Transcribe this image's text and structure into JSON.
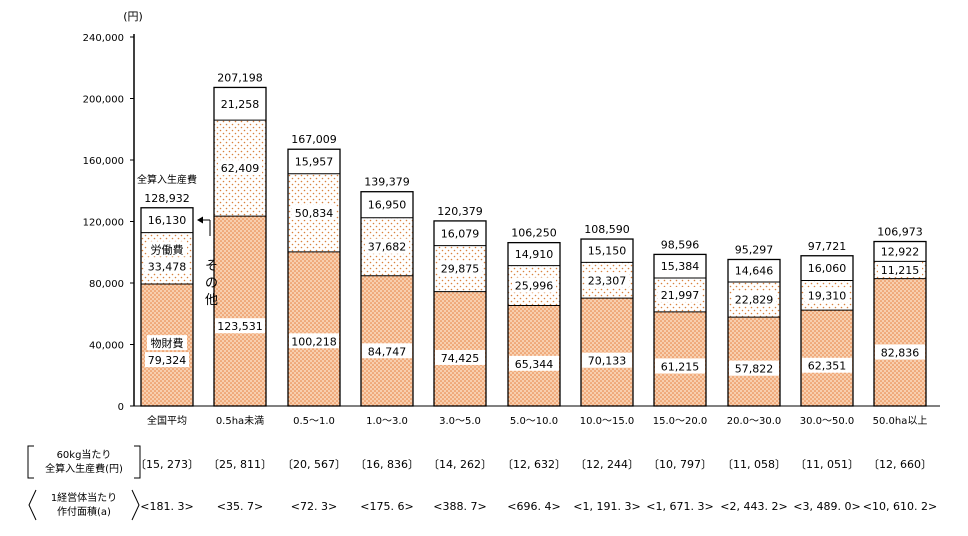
{
  "chart_data": {
    "type": "bar",
    "stacked": true,
    "y_unit": "(円)",
    "ylim": [
      0,
      240000
    ],
    "yticks": [
      "0",
      "40,000",
      "80,000",
      "120,000",
      "160,000",
      "200,000",
      "240,000"
    ],
    "ytick_values": [
      0,
      40000,
      80000,
      120000,
      160000,
      200000,
      240000
    ],
    "categories": [
      "全国平均",
      "0.5ha未満",
      "0.5〜1.0",
      "1.0〜3.0",
      "3.0〜5.0",
      "5.0〜10.0",
      "10.0〜15.0",
      "15.0〜20.0",
      "20.0〜30.0",
      "30.0〜50.0",
      "50.0ha以上"
    ],
    "series": [
      {
        "name": "物財費",
        "values": [
          79324,
          123531,
          100218,
          84747,
          74425,
          65344,
          70133,
          61215,
          57822,
          62351,
          82836
        ],
        "labels": [
          "79,324",
          "123,531",
          "100,218",
          "84,747",
          "74,425",
          "65,344",
          "70,133",
          "61,215",
          "57,822",
          "62,351",
          "82,836"
        ]
      },
      {
        "name": "労働費",
        "values": [
          33478,
          62409,
          50834,
          37682,
          29875,
          25996,
          23307,
          21997,
          22829,
          19310,
          11215
        ],
        "labels": [
          "33,478",
          "62,409",
          "50,834",
          "37,682",
          "29,875",
          "25,996",
          "23,307",
          "21,997",
          "22,829",
          "19,310",
          "11,215"
        ]
      },
      {
        "name": "その他",
        "values": [
          16130,
          21258,
          15957,
          16950,
          16079,
          14910,
          15150,
          15384,
          14646,
          16060,
          12922
        ],
        "labels": [
          "16,130",
          "21,258",
          "15,957",
          "16,950",
          "16,079",
          "14,910",
          "15,150",
          "15,384",
          "14,646",
          "16,060",
          "12,922"
        ]
      }
    ],
    "totals": [
      128932,
      207198,
      167009,
      139379,
      120379,
      106250,
      108590,
      98596,
      95297,
      97721,
      106973
    ],
    "total_labels": [
      "128,932",
      "207,198",
      "167,009",
      "139,379",
      "120,379",
      "106,250",
      "108,590",
      "98,596",
      "95,297",
      "97,721",
      "106,973"
    ],
    "annotations": {
      "total_name": "全算入生産費",
      "labor_name": "労働費",
      "materials_name": "物財費",
      "other_name_chars": [
        "そ",
        "の",
        "他"
      ]
    },
    "table": {
      "row1_label_line1": "60kg当たり",
      "row1_label_line2": "全算入生産費(円)",
      "row1_values": [
        "〔15, 273〕",
        "〔25, 811〕",
        "〔20, 567〕",
        "〔16, 836〕",
        "〔14, 262〕",
        "〔12, 632〕",
        "〔12, 244〕",
        "〔10, 797〕",
        "〔11, 058〕",
        "〔11, 051〕",
        "〔12, 660〕"
      ],
      "row2_label_line1": "1経営体当たり",
      "row2_label_line2": "作付面積(a)",
      "row2_values": [
        "<181. 3>",
        "<35. 7>",
        "<72. 3>",
        "<175. 6>",
        "<388. 7>",
        "<696. 4>",
        "<1, 191. 3>",
        "<1, 671. 3>",
        "<2, 443. 2>",
        "<3, 489. 0>",
        "<10, 610. 2>"
      ]
    },
    "colors": {
      "fill": "#f7c9a4",
      "dot": "#e87e3e",
      "stroke": "#000000",
      "label_bg": "#ffffff"
    }
  }
}
